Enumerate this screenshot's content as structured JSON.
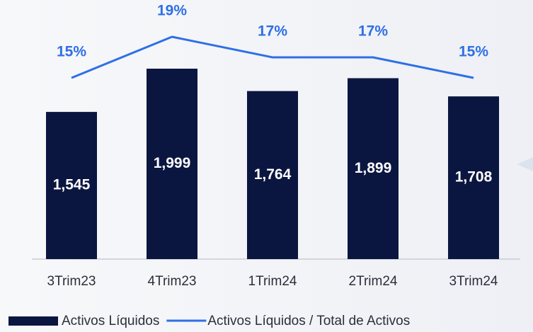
{
  "chart_data": {
    "type": "bar",
    "categories": [
      "3Trim23",
      "4Trim23",
      "1Trim24",
      "2Trim24",
      "3Trim24"
    ],
    "series": [
      {
        "name": "Activos Líquidos",
        "type": "bar",
        "color": "#0b1640",
        "values": [
          1545,
          1999,
          1764,
          1899,
          1708
        ],
        "value_labels": [
          "1,545",
          "1,999",
          "1,764",
          "1,899",
          "1,708"
        ]
      },
      {
        "name": "Activos Líquidos / Total de Activos",
        "type": "line",
        "color": "#2f6fe6",
        "values": [
          15,
          19,
          17,
          17,
          15
        ],
        "value_labels": [
          "15%",
          "19%",
          "17%",
          "17%",
          "15%"
        ]
      }
    ]
  }
}
